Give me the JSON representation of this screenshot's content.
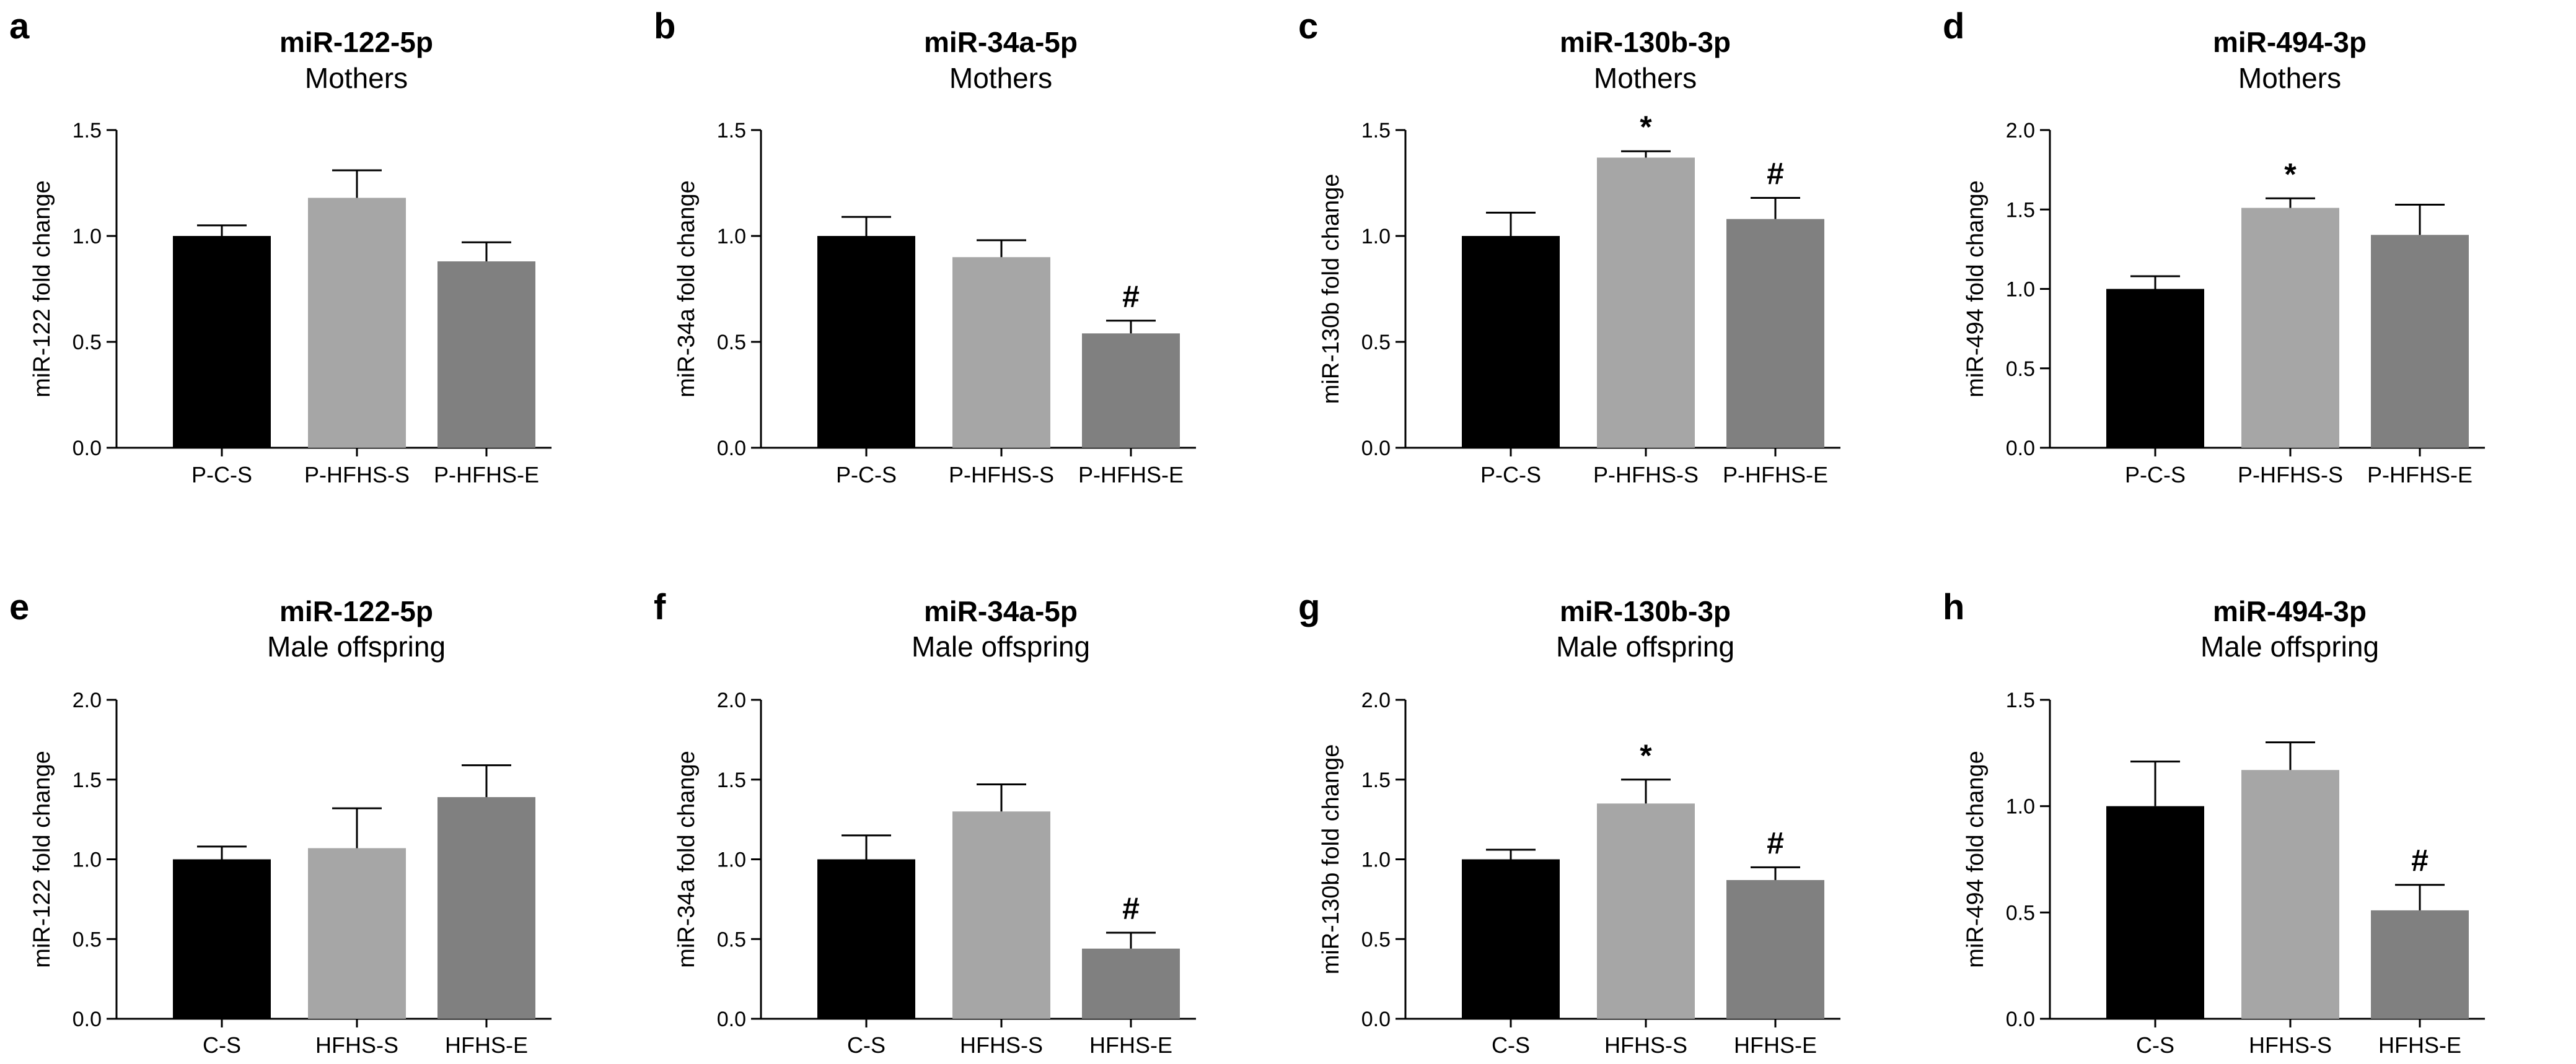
{
  "chart_data": [
    {
      "panel": "a",
      "type": "bar",
      "title": "miR-122-5p",
      "subtitle": "Mothers",
      "ylabel": "miR-122 fold change",
      "categories": [
        "P-C-S",
        "P-HFHS-S",
        "P-HFHS-E"
      ],
      "values": [
        1.0,
        1.18,
        0.88
      ],
      "errors": [
        0.05,
        0.13,
        0.09
      ],
      "ylim": [
        0,
        1.5
      ],
      "yticks": [
        "0.0",
        "0.5",
        "1.0",
        "1.5"
      ],
      "annotations": [
        "",
        "",
        ""
      ],
      "colors": [
        "#000000",
        "#a6a6a6",
        "#808080"
      ]
    },
    {
      "panel": "b",
      "type": "bar",
      "title": "miR-34a-5p",
      "subtitle": "Mothers",
      "ylabel": "miR-34a fold change",
      "categories": [
        "P-C-S",
        "P-HFHS-S",
        "P-HFHS-E"
      ],
      "values": [
        1.0,
        0.9,
        0.54
      ],
      "errors": [
        0.09,
        0.08,
        0.06
      ],
      "ylim": [
        0,
        1.5
      ],
      "yticks": [
        "0.0",
        "0.5",
        "1.0",
        "1.5"
      ],
      "annotations": [
        "",
        "",
        "#"
      ],
      "colors": [
        "#000000",
        "#a6a6a6",
        "#808080"
      ]
    },
    {
      "panel": "c",
      "type": "bar",
      "title": "miR-130b-3p",
      "subtitle": "Mothers",
      "ylabel": "miR-130b fold change",
      "categories": [
        "P-C-S",
        "P-HFHS-S",
        "P-HFHS-E"
      ],
      "values": [
        1.0,
        1.37,
        1.08
      ],
      "errors": [
        0.11,
        0.03,
        0.1
      ],
      "ylim": [
        0,
        1.5
      ],
      "yticks": [
        "0.0",
        "0.5",
        "1.0",
        "1.5"
      ],
      "annotations": [
        "",
        "*",
        "#"
      ],
      "colors": [
        "#000000",
        "#a6a6a6",
        "#808080"
      ]
    },
    {
      "panel": "d",
      "type": "bar",
      "title": "miR-494-3p",
      "subtitle": "Mothers",
      "ylabel": "miR-494 fold change",
      "categories": [
        "P-C-S",
        "P-HFHS-S",
        "P-HFHS-E"
      ],
      "values": [
        1.0,
        1.51,
        1.34
      ],
      "errors": [
        0.08,
        0.06,
        0.19
      ],
      "ylim": [
        0,
        2.0
      ],
      "yticks": [
        "0.0",
        "0.5",
        "1.0",
        "1.5",
        "2.0"
      ],
      "annotations": [
        "",
        "*",
        ""
      ],
      "colors": [
        "#000000",
        "#a6a6a6",
        "#808080"
      ]
    },
    {
      "panel": "e",
      "type": "bar",
      "title": "miR-122-5p",
      "subtitle": "Male offspring",
      "ylabel": "miR-122 fold change",
      "categories": [
        "C-S",
        "HFHS-S",
        "HFHS-E"
      ],
      "values": [
        1.0,
        1.07,
        1.39
      ],
      "errors": [
        0.08,
        0.25,
        0.2
      ],
      "ylim": [
        0,
        2.0
      ],
      "yticks": [
        "0.0",
        "0.5",
        "1.0",
        "1.5",
        "2.0"
      ],
      "annotations": [
        "",
        "",
        ""
      ],
      "colors": [
        "#000000",
        "#a6a6a6",
        "#808080"
      ]
    },
    {
      "panel": "f",
      "type": "bar",
      "title": "miR-34a-5p",
      "subtitle": "Male offspring",
      "ylabel": "miR-34a fold change",
      "categories": [
        "C-S",
        "HFHS-S",
        "HFHS-E"
      ],
      "values": [
        1.0,
        1.3,
        0.44
      ],
      "errors": [
        0.15,
        0.17,
        0.1
      ],
      "ylim": [
        0,
        2.0
      ],
      "yticks": [
        "0.0",
        "0.5",
        "1.0",
        "1.5",
        "2.0"
      ],
      "annotations": [
        "",
        "",
        "#"
      ],
      "colors": [
        "#000000",
        "#a6a6a6",
        "#808080"
      ]
    },
    {
      "panel": "g",
      "type": "bar",
      "title": "miR-130b-3p",
      "subtitle": "Male offspring",
      "ylabel": "miR-130b fold change",
      "categories": [
        "C-S",
        "HFHS-S",
        "HFHS-E"
      ],
      "values": [
        1.0,
        1.35,
        0.87
      ],
      "errors": [
        0.06,
        0.15,
        0.08
      ],
      "ylim": [
        0,
        2.0
      ],
      "yticks": [
        "0.0",
        "0.5",
        "1.0",
        "1.5",
        "2.0"
      ],
      "annotations": [
        "",
        "*",
        "#"
      ],
      "colors": [
        "#000000",
        "#a6a6a6",
        "#808080"
      ]
    },
    {
      "panel": "h",
      "type": "bar",
      "title": "miR-494-3p",
      "subtitle": "Male offspring",
      "ylabel": "miR-494 fold change",
      "categories": [
        "C-S",
        "HFHS-S",
        "HFHS-E"
      ],
      "values": [
        1.0,
        1.17,
        0.51
      ],
      "errors": [
        0.21,
        0.13,
        0.12
      ],
      "ylim": [
        0,
        1.5
      ],
      "yticks": [
        "0.0",
        "0.5",
        "1.0",
        "1.5"
      ],
      "annotations": [
        "",
        "",
        "#"
      ],
      "colors": [
        "#000000",
        "#a6a6a6",
        "#808080"
      ]
    }
  ]
}
